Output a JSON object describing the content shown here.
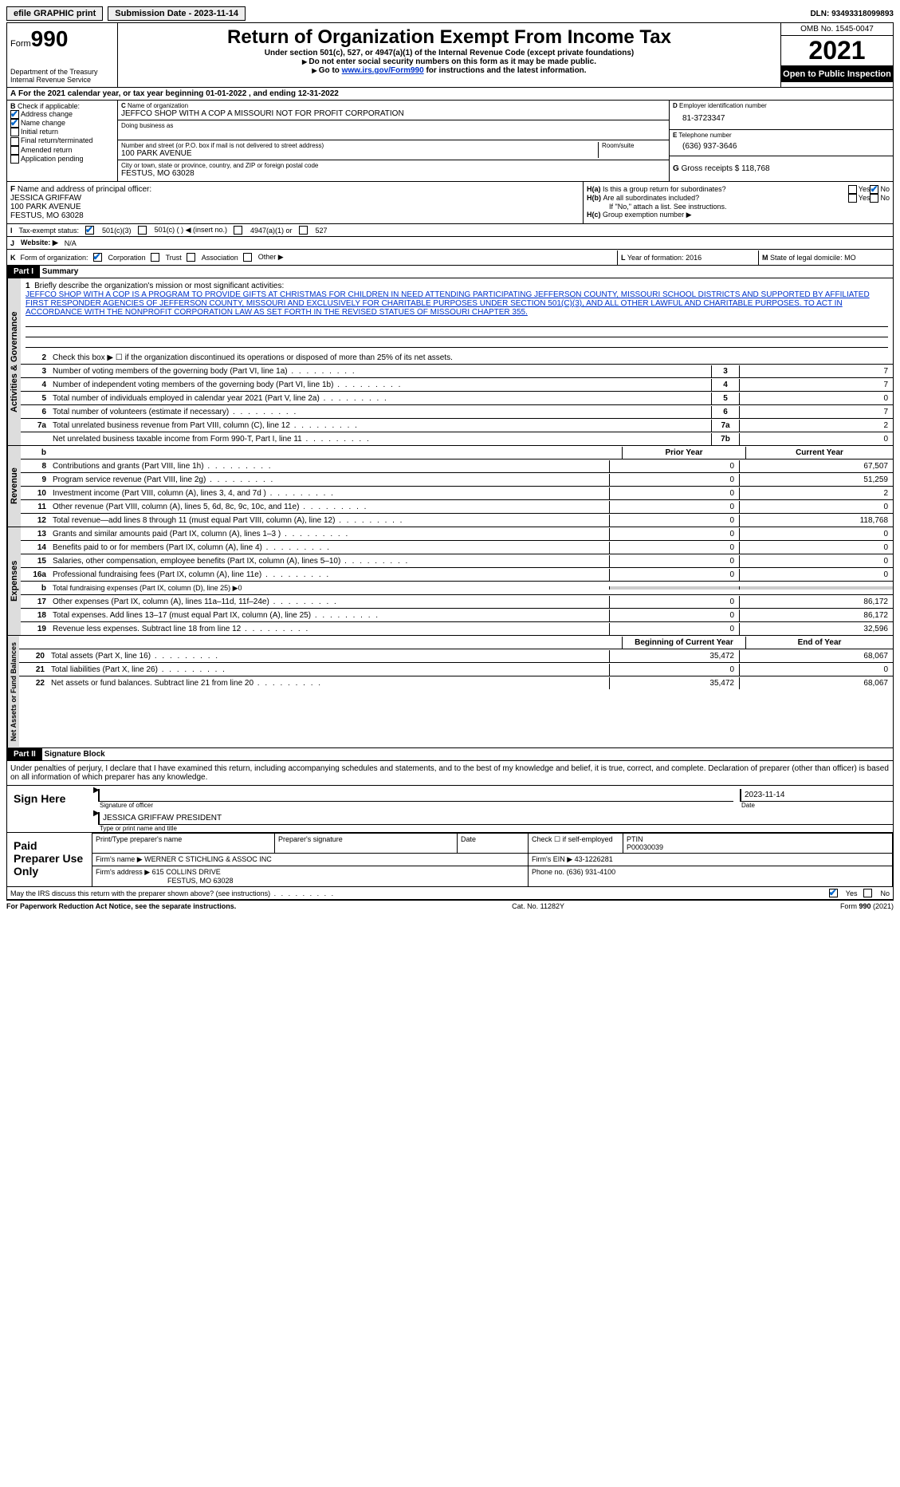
{
  "topbar": {
    "efile": "efile GRAPHIC print",
    "submission": "Submission Date - 2023-11-14",
    "dln_label": "DLN:",
    "dln": "93493318099893"
  },
  "header": {
    "form_prefix": "Form",
    "form_num": "990",
    "dept": "Department of the Treasury",
    "irs": "Internal Revenue Service",
    "title": "Return of Organization Exempt From Income Tax",
    "sub1": "Under section 501(c), 527, or 4947(a)(1) of the Internal Revenue Code (except private foundations)",
    "sub2": "Do not enter social security numbers on this form as it may be made public.",
    "sub3_pre": "Go to ",
    "sub3_link": "www.irs.gov/Form990",
    "sub3_post": " for instructions and the latest information.",
    "omb": "OMB No. 1545-0047",
    "year": "2021",
    "otp": "Open to Public Inspection"
  },
  "rowA": "For the 2021 calendar year, or tax year beginning 01-01-2022    , and ending 12-31-2022",
  "boxB": {
    "label": "Check if applicable:",
    "items": [
      "Address change",
      "Name change",
      "Initial return",
      "Final return/terminated",
      "Amended return",
      "Application pending"
    ]
  },
  "boxC": {
    "name_label": "Name of organization",
    "name": "JEFFCO SHOP WITH A COP A MISSOURI NOT FOR PROFIT CORPORATION",
    "dba_label": "Doing business as",
    "street_label": "Number and street (or P.O. box if mail is not delivered to street address)",
    "street": "100 PARK AVENUE",
    "room_label": "Room/suite",
    "city_label": "City or town, state or province, country, and ZIP or foreign postal code",
    "city": "FESTUS, MO  63028"
  },
  "boxD": {
    "label": "Employer identification number",
    "val": "81-3723347"
  },
  "boxE": {
    "label": "Telephone number",
    "val": "(636) 937-3646"
  },
  "boxG": {
    "label": "Gross receipts $",
    "val": "118,768"
  },
  "boxF": {
    "label": "Name and address of principal officer:",
    "name": "JESSICA GRIFFAW",
    "street": "100 PARK AVENUE",
    "city": "FESTUS, MO  63028"
  },
  "boxH": {
    "a": "Is this a group return for subordinates?",
    "b": "Are all subordinates included?",
    "b_note": "If \"No,\" attach a list. See instructions.",
    "c": "Group exemption number ▶"
  },
  "rowI": {
    "label": "Tax-exempt status:",
    "opts": [
      "501(c)(3)",
      "501(c) (  ) ◀ (insert no.)",
      "4947(a)(1) or",
      "527"
    ]
  },
  "rowJ": {
    "label": "Website: ▶",
    "val": "N/A"
  },
  "rowK": {
    "label": "Form of organization:",
    "opts": [
      "Corporation",
      "Trust",
      "Association",
      "Other ▶"
    ]
  },
  "rowL": {
    "label": "Year of formation:",
    "val": "2016"
  },
  "rowM": {
    "label": "State of legal domicile:",
    "val": "MO"
  },
  "part1": {
    "header": "Part I",
    "title": "Summary",
    "tab1": "Activities & Governance",
    "line1_label": "Briefly describe the organization's mission or most significant activities:",
    "mission": "JEFFCO SHOP WITH A COP IS A PROGRAM TO PROVIDE GIFTS AT CHRISTMAS FOR CHILDREN IN NEED ATTENDING PARTICIPATING JEFFERSON COUNTY, MISSOURI SCHOOL DISTRICTS AND SUPPORTED BY AFFILIATED FIRST RESPONDER AGENCIES OF JEFFERSON COUNTY, MISSOURI AND EXCLUSIVELY FOR CHARITABLE PURPOSES UNDER SECTION 501(C)(3), AND ALL OTHER LAWFUL AND CHARITABLE PURPOSES. TO ACT IN ACCORDANCE WITH THE NONPROFIT CORPORATION LAW AS SET FORTH IN THE REVISED STATUES OF MISSOURI CHAPTER 355.",
    "line2": "Check this box ▶ ☐  if the organization discontinued its operations or disposed of more than 25% of its net assets.",
    "rows_ag": [
      {
        "n": "3",
        "t": "Number of voting members of the governing body (Part VI, line 1a)",
        "b": "3",
        "v": "7"
      },
      {
        "n": "4",
        "t": "Number of independent voting members of the governing body (Part VI, line 1b)",
        "b": "4",
        "v": "7"
      },
      {
        "n": "5",
        "t": "Total number of individuals employed in calendar year 2021 (Part V, line 2a)",
        "b": "5",
        "v": "0"
      },
      {
        "n": "6",
        "t": "Total number of volunteers (estimate if necessary)",
        "b": "6",
        "v": "7"
      },
      {
        "n": "7a",
        "t": "Total unrelated business revenue from Part VIII, column (C), line 12",
        "b": "7a",
        "v": "2"
      },
      {
        "n": "",
        "t": "Net unrelated business taxable income from Form 990-T, Part I, line 11",
        "b": "7b",
        "v": "0"
      }
    ],
    "tab2": "Revenue",
    "col_prior": "Prior Year",
    "col_current": "Current Year",
    "rows_rev": [
      {
        "n": "8",
        "t": "Contributions and grants (Part VIII, line 1h)",
        "p": "0",
        "c": "67,507"
      },
      {
        "n": "9",
        "t": "Program service revenue (Part VIII, line 2g)",
        "p": "0",
        "c": "51,259"
      },
      {
        "n": "10",
        "t": "Investment income (Part VIII, column (A), lines 3, 4, and 7d )",
        "p": "0",
        "c": "2"
      },
      {
        "n": "11",
        "t": "Other revenue (Part VIII, column (A), lines 5, 6d, 8c, 9c, 10c, and 11e)",
        "p": "0",
        "c": "0"
      },
      {
        "n": "12",
        "t": "Total revenue—add lines 8 through 11 (must equal Part VIII, column (A), line 12)",
        "p": "0",
        "c": "118,768"
      }
    ],
    "tab3": "Expenses",
    "rows_exp": [
      {
        "n": "13",
        "t": "Grants and similar amounts paid (Part IX, column (A), lines 1–3 )",
        "p": "0",
        "c": "0"
      },
      {
        "n": "14",
        "t": "Benefits paid to or for members (Part IX, column (A), line 4)",
        "p": "0",
        "c": "0"
      },
      {
        "n": "15",
        "t": "Salaries, other compensation, employee benefits (Part IX, column (A), lines 5–10)",
        "p": "0",
        "c": "0"
      },
      {
        "n": "16a",
        "t": "Professional fundraising fees (Part IX, column (A), line 11e)",
        "p": "0",
        "c": "0"
      },
      {
        "n": "b",
        "t": "Total fundraising expenses (Part IX, column (D), line 25) ▶0",
        "p": "",
        "c": "",
        "gray": true
      },
      {
        "n": "17",
        "t": "Other expenses (Part IX, column (A), lines 11a–11d, 11f–24e)",
        "p": "0",
        "c": "86,172"
      },
      {
        "n": "18",
        "t": "Total expenses. Add lines 13–17 (must equal Part IX, column (A), line 25)",
        "p": "0",
        "c": "86,172"
      },
      {
        "n": "19",
        "t": "Revenue less expenses. Subtract line 18 from line 12",
        "p": "0",
        "c": "32,596"
      }
    ],
    "tab4": "Net Assets or Fund Balances",
    "col_begin": "Beginning of Current Year",
    "col_end": "End of Year",
    "rows_na": [
      {
        "n": "20",
        "t": "Total assets (Part X, line 16)",
        "p": "35,472",
        "c": "68,067"
      },
      {
        "n": "21",
        "t": "Total liabilities (Part X, line 26)",
        "p": "0",
        "c": "0"
      },
      {
        "n": "22",
        "t": "Net assets or fund balances. Subtract line 21 from line 20",
        "p": "35,472",
        "c": "68,067"
      }
    ]
  },
  "part2": {
    "header": "Part II",
    "title": "Signature Block",
    "decl": "Under penalties of perjury, I declare that I have examined this return, including accompanying schedules and statements, and to the best of my knowledge and belief, it is true, correct, and complete. Declaration of preparer (other than officer) is based on all information of which preparer has any knowledge.",
    "sign_here": "Sign Here",
    "sig_officer": "Signature of officer",
    "sig_date": "Date",
    "sig_date_val": "2023-11-14",
    "officer_name": "JESSICA GRIFFAW  PRESIDENT",
    "type_name": "Type or print name and title",
    "paid": "Paid Preparer Use Only",
    "prep_name_label": "Print/Type preparer's name",
    "prep_sig_label": "Preparer's signature",
    "date_label": "Date",
    "check_self": "Check ☐ if self-employed",
    "ptin_label": "PTIN",
    "ptin": "P00030039",
    "firm_name_label": "Firm's name    ▶",
    "firm_name": "WERNER C STICHLING & ASSOC INC",
    "firm_ein_label": "Firm's EIN ▶",
    "firm_ein": "43-1226281",
    "firm_addr_label": "Firm's address ▶",
    "firm_addr1": "615 COLLINS DRIVE",
    "firm_addr2": "FESTUS, MO  63028",
    "phone_label": "Phone no.",
    "phone": "(636) 931-4100",
    "discuss": "May the IRS discuss this return with the preparer shown above? (see instructions)"
  },
  "footer": {
    "left": "For Paperwork Reduction Act Notice, see the separate instructions.",
    "mid": "Cat. No. 11282Y",
    "right": "Form 990 (2021)"
  }
}
